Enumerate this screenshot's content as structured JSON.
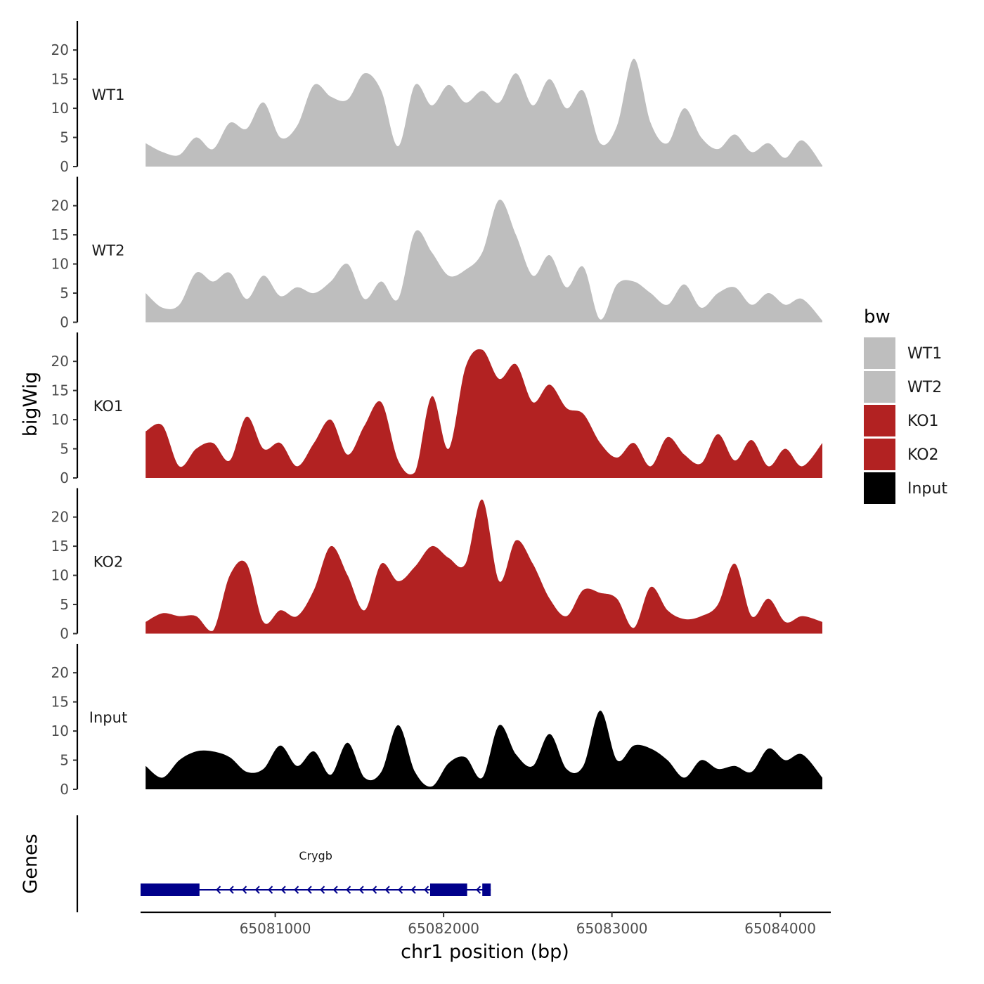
{
  "chart_data": {
    "type": "area",
    "ylabel": "bigWig",
    "xlabel": "chr1 position (bp)",
    "x_range": [
      65080200,
      65084300
    ],
    "x_ticks": [
      65081000,
      65082000,
      65083000,
      65084000
    ],
    "x_tick_labels": [
      "65081000",
      "65082000",
      "65083000",
      "65084000"
    ],
    "ylim": [
      0,
      24
    ],
    "y_ticks": [
      0,
      5,
      10,
      15,
      20
    ],
    "y_tick_labels": [
      "0",
      "5",
      "10",
      "15",
      "20"
    ],
    "legend": {
      "title": "bw",
      "position": "right",
      "entries": [
        {
          "label": "WT1",
          "color": "#bebebe"
        },
        {
          "label": "WT2",
          "color": "#bebebe"
        },
        {
          "label": "KO1",
          "color": "#b22222"
        },
        {
          "label": "KO2",
          "color": "#b22222"
        },
        {
          "label": "Input",
          "color": "#000000"
        }
      ]
    },
    "x": [
      65080230,
      65080330,
      65080430,
      65080530,
      65080630,
      65080730,
      65080830,
      65080930,
      65081030,
      65081130,
      65081230,
      65081330,
      65081430,
      65081530,
      65081630,
      65081730,
      65081830,
      65081930,
      65082030,
      65082130,
      65082230,
      65082330,
      65082430,
      65082530,
      65082630,
      65082730,
      65082830,
      65082930,
      65083030,
      65083130,
      65083230,
      65083330,
      65083430,
      65083530,
      65083630,
      65083730,
      65083830,
      65083930,
      65084030,
      65084130,
      65084250
    ],
    "series": [
      {
        "name": "WT1",
        "color": "#bebebe",
        "values": [
          4,
          2.5,
          2,
          5,
          3,
          7.5,
          6.5,
          11,
          5,
          7,
          14,
          12,
          11.5,
          16,
          13,
          3.5,
          14,
          10.5,
          14,
          11,
          13,
          11,
          16,
          10.5,
          15,
          10,
          13,
          4,
          7,
          18.5,
          7.5,
          4,
          10,
          5,
          3,
          5.5,
          2.5,
          4,
          1.5,
          4.5,
          0.2
        ]
      },
      {
        "name": "WT2",
        "color": "#bebebe",
        "values": [
          5,
          2.5,
          3,
          8.5,
          7,
          8.5,
          4,
          8,
          4.5,
          6,
          5,
          7,
          10,
          4,
          7,
          4,
          15.5,
          12,
          8,
          9,
          12,
          21,
          15,
          8,
          11.5,
          6,
          9.5,
          0.5,
          6.5,
          7,
          5,
          3,
          6.5,
          2.5,
          5,
          6,
          3,
          5,
          3,
          4,
          0.3
        ]
      },
      {
        "name": "KO1",
        "color": "#b22222",
        "values": [
          8,
          9,
          2,
          5,
          6,
          3,
          10.5,
          5,
          6,
          2,
          6,
          10,
          4,
          9,
          13,
          3,
          1,
          14,
          5,
          19,
          22,
          17,
          19.5,
          13,
          16,
          12,
          11,
          6,
          3.5,
          6,
          2,
          7,
          4,
          2.5,
          7.5,
          3,
          6.5,
          2,
          5,
          2,
          6
        ]
      },
      {
        "name": "KO2",
        "color": "#b22222",
        "values": [
          2,
          3.5,
          3,
          3,
          0.5,
          10,
          12,
          2,
          4,
          3,
          7.5,
          15,
          10,
          4,
          12,
          9,
          11.5,
          15,
          13,
          12,
          23,
          9,
          16,
          12,
          6,
          3,
          7.5,
          7,
          6,
          1,
          8,
          4,
          2.5,
          3,
          5,
          12,
          3,
          6,
          2,
          3,
          2
        ]
      },
      {
        "name": "Input",
        "color": "#000000",
        "values": [
          4,
          2,
          5,
          6.5,
          6.5,
          5.5,
          3,
          3.5,
          7.5,
          4,
          6.5,
          2.5,
          8,
          2,
          3,
          11,
          3,
          0.5,
          4.5,
          5.5,
          2,
          11,
          6,
          4,
          9.5,
          3.5,
          4,
          13.5,
          5,
          7.5,
          7,
          5,
          2,
          5,
          3.5,
          4,
          3,
          7,
          5,
          6,
          2
        ]
      }
    ],
    "gene_track": {
      "label": "Genes",
      "gene_name": "Crygb",
      "strand": "-",
      "start": 65080200,
      "end": 65082280,
      "exons": [
        [
          65080200,
          65080550
        ],
        [
          65081920,
          65082140
        ],
        [
          65082230,
          65082280
        ]
      ]
    }
  }
}
